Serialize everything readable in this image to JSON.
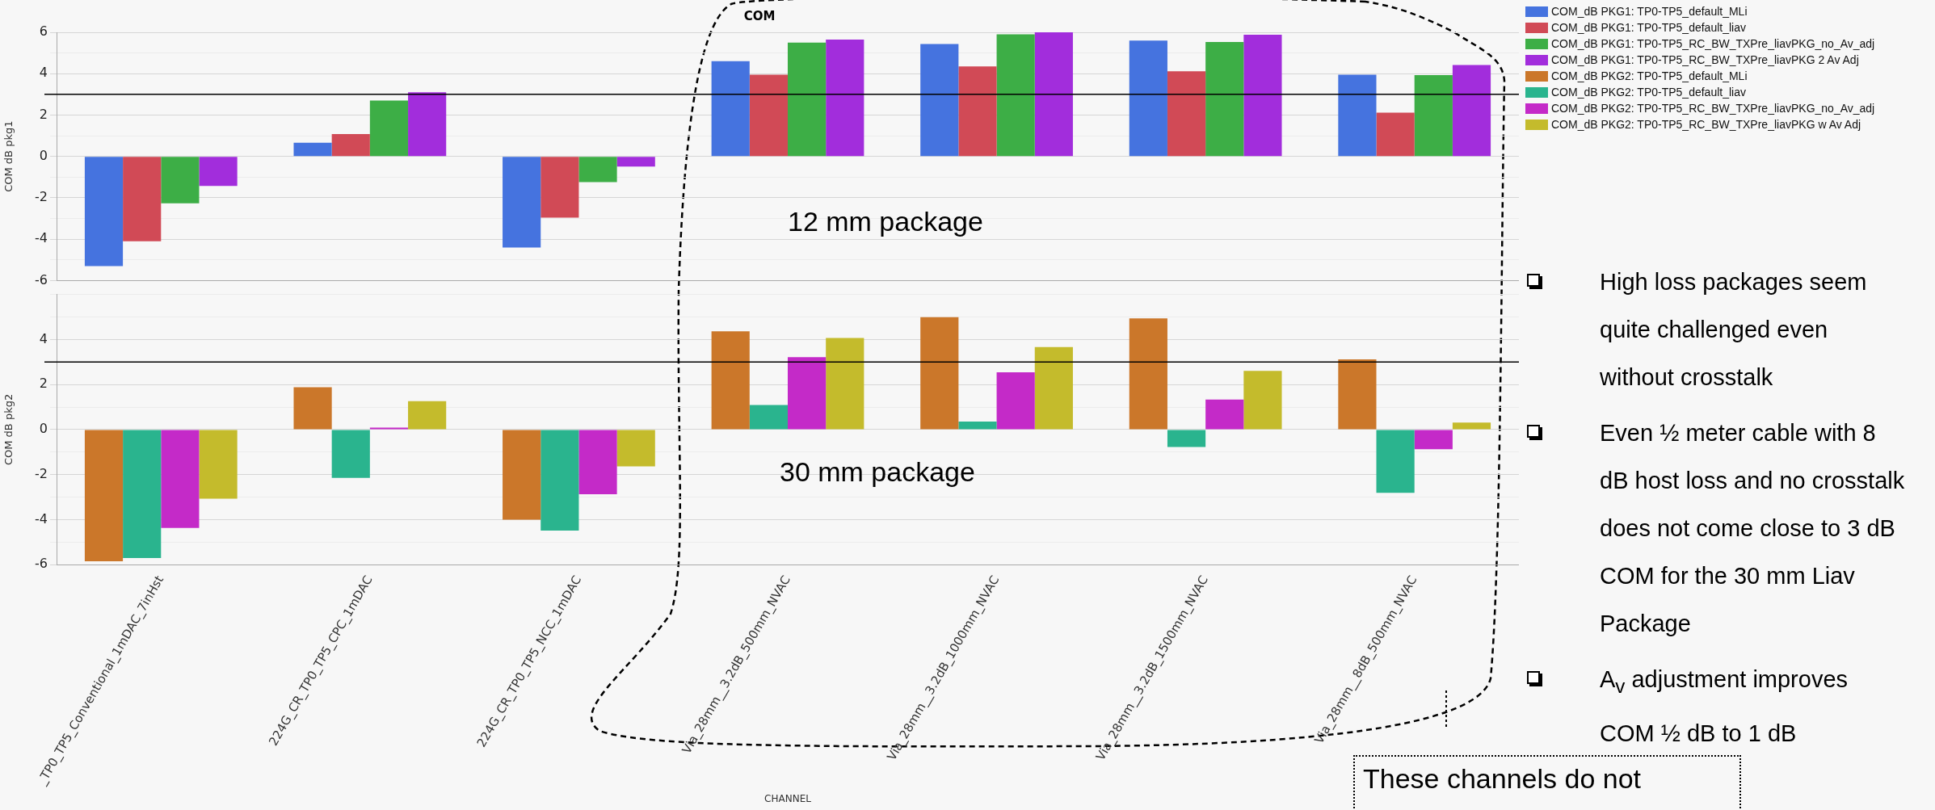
{
  "chart_data": [
    {
      "type": "bar",
      "title": "COM",
      "ylabel": "COM dB pkg1",
      "categories": [
        null,
        null,
        null,
        null,
        null,
        null,
        null
      ],
      "series": [
        {
          "name": "COM_dB PKG1: TP0-TP5_default_MLi",
          "color": "#4573df",
          "values": [
            -5.3,
            0.66,
            -4.4,
            4.6,
            5.43,
            5.6,
            3.95
          ]
        },
        {
          "name": "COM_dB PKG1: TP0-TP5_default_liav",
          "color": "#d14a56",
          "values": [
            -4.1,
            1.08,
            -2.96,
            3.95,
            4.35,
            4.12,
            2.12
          ]
        },
        {
          "name": "COM_dB PKG1: TP0-TP5_RC_BW_TXPre_liavPKG_no_Av_adj",
          "color": "#3dae46",
          "values": [
            -2.27,
            2.7,
            -1.24,
            5.5,
            5.9,
            5.53,
            3.93
          ]
        },
        {
          "name": "COM_dB PKG1: TP0-TP5_RC_BW_TXPre_liavPKG 2 Av Adj",
          "color": "#a22ddc",
          "values": [
            -1.43,
            3.1,
            -0.49,
            5.65,
            6.0,
            5.88,
            4.42
          ]
        }
      ],
      "ylim": [
        -6,
        6
      ],
      "yticks": [
        {
          "value": -6,
          "label": "-6"
        },
        {
          "value": -5,
          "label": null
        },
        {
          "value": -4,
          "label": "-4"
        },
        {
          "value": -3,
          "label": null
        },
        {
          "value": -2,
          "label": "-2"
        },
        {
          "value": -1,
          "label": null
        },
        0,
        {
          "value": 1,
          "label": null
        },
        2,
        {
          "value": 3,
          "label": null
        },
        4,
        {
          "value": 5,
          "label": null
        },
        6
      ],
      "grid": "y",
      "legend": "right",
      "tick_labels": "y",
      "ref_lines": [
        {
          "axis": "y",
          "value": 3,
          "color": "#000000"
        }
      ],
      "annotations": [
        "12 mm package",
        "High loss packages seem quite challenged even without crosstalk",
        "Even ½ meter cable with 8 dB host loss and no crosstalk does not come close to 3 dB COM for the 30 mm Liav Package",
        "A$_{v}$ adjustment improves COM ½ dB to 1 dB",
        "These channels do not"
      ]
    },
    {
      "type": "bar",
      "xlabel": "CHANNEL",
      "ylabel": "COM dB pkg2",
      "categories": [
        "_TP0_TP5_Conventional_1mDAC_7inHst",
        "224G_CR_TP0_TP5_CPC_1mDAC",
        "224G_CR_TP0_TP5_NCC_1mDAC",
        "Via_28mm__3.2dB_500mm_NVAC",
        "Via_28mm__3.2dB_1000mm_NVAC",
        "Via_28mm__3.2dB_1500mm_NVAC",
        "Via_28mm__8dB_500mm_NVAC"
      ],
      "series": [
        {
          "name": "COM_dB PKG2: TP0-TP5_default_MLi",
          "color": "#cb772a",
          "values": [
            -5.85,
            1.88,
            -4.0,
            4.36,
            4.99,
            4.94,
            3.12
          ]
        },
        {
          "name": "COM_dB PKG2: TP0-TP5_default_liav",
          "color": "#2ab48e",
          "values": [
            -5.7,
            -2.14,
            -4.48,
            1.09,
            0.36,
            -0.77,
            -2.81
          ]
        },
        {
          "name": "COM_dB PKG2: TP0-TP5_RC_BW_TXPre_liavPKG_no_Av_adj",
          "color": "#c42ac8",
          "values": [
            -4.37,
            0.09,
            -2.87,
            3.22,
            2.54,
            1.33,
            -0.87
          ]
        },
        {
          "name": "COM_dB PKG2: TP0-TP5_RC_BW_TXPre_liavPKG w Av Adj",
          "color": "#c4bb2c",
          "values": [
            -3.07,
            1.26,
            -1.63,
            4.07,
            3.66,
            2.61,
            0.31
          ]
        }
      ],
      "ylim": [
        -6,
        6
      ],
      "yticks": [
        {
          "value": -6,
          "label": "-6"
        },
        {
          "value": -5,
          "label": null
        },
        {
          "value": -4,
          "label": "-4"
        },
        {
          "value": -3,
          "label": null
        },
        {
          "value": -2,
          "label": "-2"
        },
        {
          "value": -1,
          "label": null
        },
        0,
        {
          "value": 1,
          "label": null
        },
        2,
        {
          "value": 3,
          "label": null
        },
        4,
        {
          "value": 5,
          "label": null
        },
        {
          "value": 6,
          "label": null
        }
      ],
      "grid": "y",
      "legend": "right",
      "ref_lines": [
        {
          "axis": "y",
          "value": 3,
          "color": "#000000"
        }
      ],
      "annotations": [
        "30 mm package"
      ]
    }
  ]
}
